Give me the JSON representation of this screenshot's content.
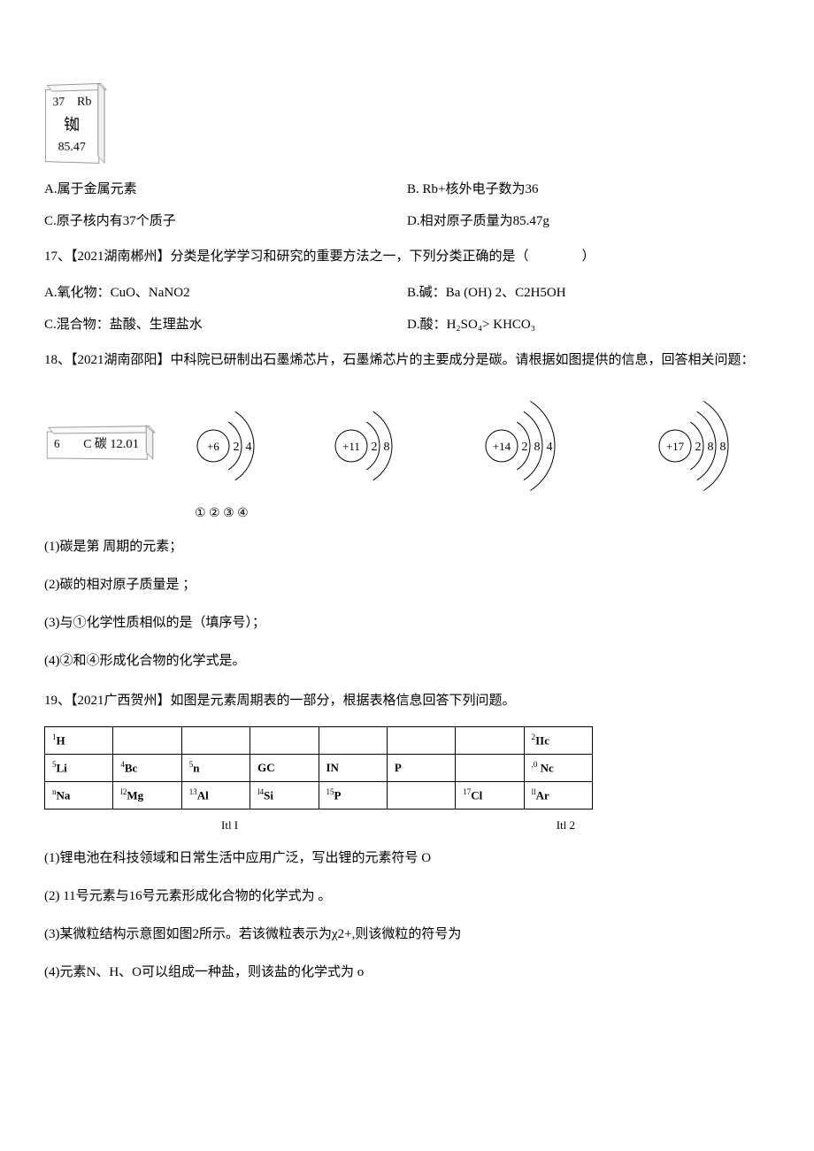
{
  "rb_box": {
    "atomic_num": "37",
    "symbol": "Rb",
    "name": "铷",
    "mass": "85.47"
  },
  "q16": {
    "optA": "A.属于金属元素",
    "optB": "B. Rb+核外电子数为36",
    "optC": "C.原子核内有37个质子",
    "optD": "D.相对原子质量为85.47g"
  },
  "q17": {
    "text": "17、【2021湖南郴州】分类是化学学习和研究的重要方法之一，下列分类正确的是（　　　　）",
    "optA": "A.氧化物：CuO、NaNO2",
    "optB": "B.碱：Ba (OH) 2、C2H5OH",
    "optC": "C.混合物：盐酸、生理盐水",
    "optD": "D.酸：H₂SO₄> KHCO₃"
  },
  "q18": {
    "text": "18、【2021湖南邵阳】中科院已研制出石墨烯芯片，石墨烯芯片的主要成分是碳。请根据如图提供的信息，回答相关问题：",
    "c_box": {
      "atomic_num": "6",
      "symbol": "C",
      "name": "碳",
      "mass": "12.01"
    },
    "atoms": [
      {
        "nucleus": "+6",
        "shells": [
          "2",
          "4"
        ]
      },
      {
        "nucleus": "+11",
        "shells": [
          "2",
          "8"
        ]
      },
      {
        "nucleus": "+14",
        "shells": [
          "2",
          "8",
          "4"
        ]
      },
      {
        "nucleus": "+17",
        "shells": [
          "2",
          "8",
          "8"
        ]
      }
    ],
    "labels": "① ② ③ ④",
    "sub1": "(1)碳是第 周期的元素；",
    "sub2": "(2)碳的相对原子质量是 ；",
    "sub3": "(3)与①化学性质相似的是（填序号）；",
    "sub4": "(4)②和④形成化合物的化学式是。"
  },
  "q19": {
    "text": "19、【2021广西贺州】如图是元素周期表的一部分，根据表格信息回答下列问题。",
    "table": {
      "rows": [
        [
          {
            "sup": "1",
            "t": "H"
          },
          {
            "t": ""
          },
          {
            "t": ""
          },
          {
            "t": ""
          },
          {
            "t": ""
          },
          {
            "t": ""
          },
          {
            "t": ""
          },
          {
            "sup": "2",
            "t": "IIc"
          }
        ],
        [
          {
            "sup": "5",
            "t": "Li"
          },
          {
            "sup": "4",
            "t": "Bc"
          },
          {
            "sup": "5",
            "t": "n"
          },
          {
            "t": "GC"
          },
          {
            "t": "IN"
          },
          {
            "t": "P"
          },
          {
            "t": ""
          },
          {
            "sup": ",0",
            "t": " Nc"
          }
        ],
        [
          {
            "sup": "n",
            "t": "Na"
          },
          {
            "sup": "l2",
            "t": "Mg"
          },
          {
            "sup": "13",
            "t": "Al"
          },
          {
            "sup": "l4",
            "t": "Si"
          },
          {
            "sup": "15",
            "t": "P"
          },
          {
            "t": ""
          },
          {
            "sup": "17",
            "t": "Cl"
          },
          {
            "sup": "ll",
            "t": "Ar"
          }
        ]
      ]
    },
    "cap1": "Itl I",
    "cap2": "Itl 2",
    "sub1": "(1)锂电池在科技领域和日常生活中应用广泛，写出锂的元素符号 O",
    "sub2": "(2) 11号元素与16号元素形成化合物的化学式为 。",
    "sub3": "(3)某微粒结构示意图如图2所示。若该微粒表示为χ2+,则该微粒的符号为",
    "sub4": "(4)元素N、H、O可以组成一种盐，则该盐的化学式为 o"
  }
}
